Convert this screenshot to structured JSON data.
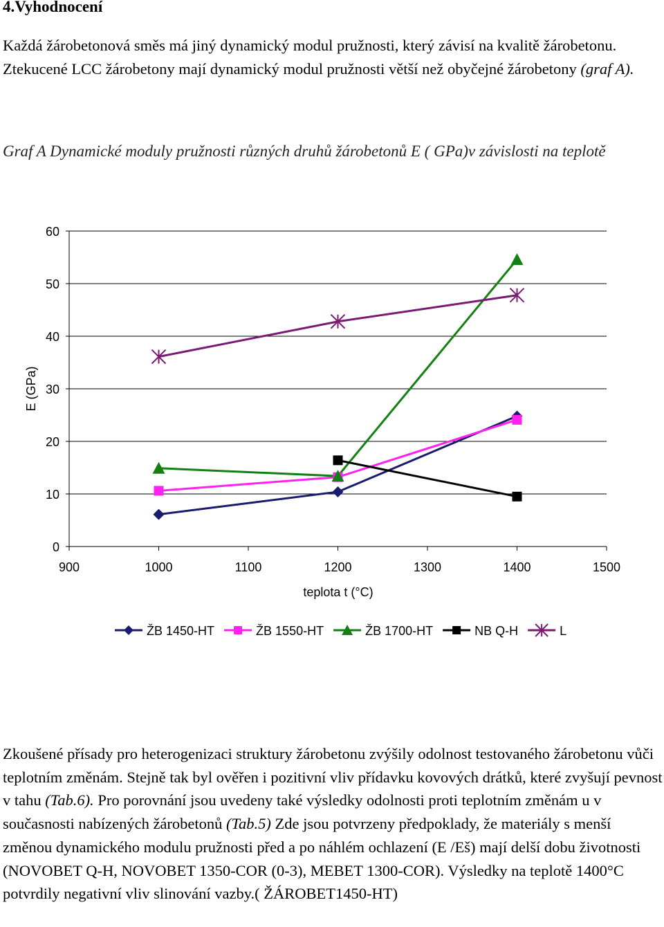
{
  "heading": "4.Vyhodnocení",
  "paragraph1": "Každá žárobetonová směs má jiný dynamický modul pružnosti, který závisí na kvalitě žárobetonu. Ztekucené LCC žárobetony mají dynamický modul pružnosti větší než obyčejné žárobetony ",
  "paragraph1_italic": "(graf A).",
  "caption": " Graf A Dynamické moduly pružnosti různých druhů žárobetonů E ( GPa)v závislosti na teplotě",
  "paragraph2": {
    "part1": "Zkoušené přísady pro heterogenizaci  struktury  žárobetonu zvýšily odolnost testovaného žárobetonu vůči teplotním změnám. Stejně tak byl ověřen i pozitivní vliv přídavku kovových drátků, které zvyšují pevnost v tahu ",
    "ref1": "(Tab.6).",
    "part2": " Pro porovnání jsou uvedeny také výsledky odolnosti proti teplotním změnám u v současnosti nabízených žárobetonů ",
    "ref2": "(Tab.5)",
    "part3": " Zde jsou potvrzeny předpoklady, že materiály s menší změnou dynamického modulu pružnosti před a po náhlém ochlazení (E /Eš) mají delší dobu životnosti (NOVOBET Q-H,  NOVOBET 1350-COR (0-3), MEBET 1300-COR). Výsledky na teplotě 1400°C potvrdily negativní vliv slinování vazby.( ŽÁROBET1450-HT)"
  },
  "chart_data": {
    "type": "line",
    "xlabel": "teplota t (°C)",
    "ylabel": "E (GPa)",
    "xlim": [
      900,
      1500
    ],
    "ylim": [
      0,
      60
    ],
    "xticks": [
      900,
      1000,
      1100,
      1200,
      1300,
      1400,
      1500
    ],
    "yticks": [
      0,
      10,
      20,
      30,
      40,
      50,
      60
    ],
    "grid": "horizontal",
    "legend": "bottom",
    "series": [
      {
        "name": "ŽB 1450-HT",
        "color": "#1a1a6e",
        "marker": "diamond",
        "x": [
          1000,
          1200,
          1400
        ],
        "y": [
          6.1,
          10.4,
          24.8
        ]
      },
      {
        "name": "ŽB 1550-HT",
        "color": "#ff22ee",
        "marker": "square",
        "x": [
          1000,
          1200,
          1400
        ],
        "y": [
          10.6,
          13.2,
          24.1
        ]
      },
      {
        "name": "ŽB 1700-HT",
        "color": "#138013",
        "marker": "triangle",
        "x": [
          1000,
          1200,
          1400
        ],
        "y": [
          14.9,
          13.4,
          54.6
        ]
      },
      {
        "name": "NB Q-H",
        "color": "#000000",
        "marker": "square",
        "x": [
          1200,
          1400
        ],
        "y": [
          16.4,
          9.5
        ]
      },
      {
        "name": "L",
        "color": "#7a1a72",
        "marker": "star",
        "x": [
          1000,
          1200,
          1400
        ],
        "y": [
          36.1,
          42.8,
          47.8
        ]
      }
    ]
  }
}
